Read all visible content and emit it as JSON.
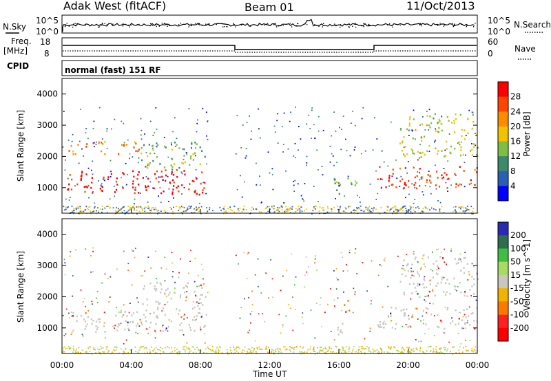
{
  "header": {
    "station": "Adak West (fitACF)",
    "beam": "Beam 01",
    "date": "11/Oct/2013"
  },
  "top_panels": {
    "nsky_label": "N.Sky",
    "nsearch_label": "N.Search",
    "noise_ticks_left": [
      "10^5",
      "10^0"
    ],
    "noise_ticks_right": [
      "10^5",
      "10^0"
    ],
    "freq_label_1": "Freq.",
    "freq_label_2": "[MHz]",
    "freq_ticks": [
      "18",
      "8"
    ],
    "nave_label": "Nave",
    "nave_ticks": [
      "60",
      "0"
    ],
    "cpid_label": "CPID",
    "cpid_text": "normal (fast) 151 RF"
  },
  "chart_data": [
    {
      "type": "heatmap",
      "title": "",
      "ylabel": "Slant Range [km]",
      "yticks": [
        "4000",
        "3000",
        "2000",
        "1000"
      ],
      "ylim": [
        180,
        4500
      ],
      "xlim": [
        0,
        24
      ],
      "colorbar_label": "Power [dB]",
      "colorbar_ticks": [
        "28",
        "24",
        "20",
        "16",
        "12",
        "8",
        "4"
      ],
      "colorscale": [
        "#0000ff",
        "#2b5fb4",
        "#3c8a6a",
        "#7fbf3f",
        "#f2c200",
        "#ff8c00",
        "#ff4500",
        "#ff0000"
      ],
      "regions": [
        {
          "t0": 0.3,
          "t1": 8.3,
          "r0": 800,
          "r1": 1600,
          "level": 28
        },
        {
          "t0": 0.3,
          "t1": 4.5,
          "r0": 2100,
          "r1": 2500,
          "level": 22
        },
        {
          "t0": 4.5,
          "t1": 8.3,
          "r0": 1600,
          "r1": 2500,
          "level": 14
        },
        {
          "t0": 15.7,
          "t1": 17.0,
          "r0": 750,
          "r1": 1400,
          "level": 14
        },
        {
          "t0": 18.2,
          "t1": 24.0,
          "r0": 1000,
          "r1": 1700,
          "level": 26
        },
        {
          "t0": 19.5,
          "t1": 24.0,
          "r0": 2000,
          "r1": 3400,
          "level": 16
        }
      ]
    },
    {
      "type": "heatmap",
      "title": "",
      "xlabel": "Time UT",
      "xticks": [
        "00:00",
        "04:00",
        "08:00",
        "12:00",
        "16:00",
        "20:00",
        "00:00"
      ],
      "ylabel": "Slant Range [km]",
      "yticks": [
        "4000",
        "3000",
        "2000",
        "1000"
      ],
      "ylim": [
        180,
        4500
      ],
      "xlim": [
        0,
        24
      ],
      "colorbar_label": "Velocity [m s^-1]",
      "colorbar_ticks": [
        "200",
        "100",
        "50",
        "15",
        "-15",
        "-50",
        "-100",
        "-200"
      ],
      "colorscale": [
        "#2a2ab4",
        "#2e6e4e",
        "#3fbf3f",
        "#a8dc60",
        "#c8c8c0",
        "#f0b400",
        "#ff7800",
        "#ff2020",
        "#ff0000"
      ],
      "regions": [
        {
          "t0": 0.3,
          "t1": 8.3,
          "r0": 900,
          "r1": 1600,
          "level": 0
        },
        {
          "t0": 4.5,
          "t1": 8.3,
          "r0": 1600,
          "r1": 2500,
          "level": 0
        },
        {
          "t0": 16.2,
          "t1": 16.6,
          "r0": 1500,
          "r1": 2100,
          "level": -80
        },
        {
          "t0": 15.7,
          "t1": 16.3,
          "r0": 700,
          "r1": 1400,
          "level": 0
        },
        {
          "t0": 18.2,
          "t1": 24.0,
          "r0": 1000,
          "r1": 1700,
          "level": 0
        },
        {
          "t0": 19.5,
          "t1": 24.0,
          "r0": 2000,
          "r1": 3400,
          "level": 0
        }
      ]
    }
  ]
}
